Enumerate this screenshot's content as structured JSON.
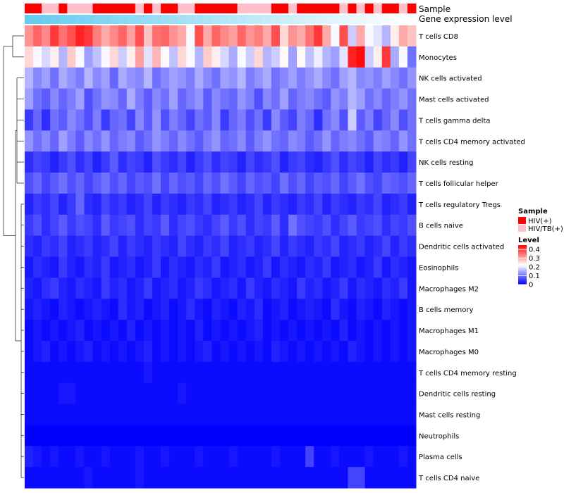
{
  "chart_data": {
    "type": "heatmap",
    "title": "",
    "annotations": {
      "sample_label": "Sample",
      "expression_label": "Gene expression level"
    },
    "rows": [
      "T cells CD8",
      "Monocytes",
      "NK cells activated",
      "Mast cells activated",
      "T cells gamma delta",
      "T cells CD4 memory activated",
      "NK cells resting",
      "T cells follicular helper",
      "T cells regulatory  Tregs",
      "B cells naive",
      "Dendritic cells activated",
      "Eosinophils",
      "Macrophages M2",
      "B cells memory",
      "Macrophages M1",
      "Macrophages M0",
      "T cells CD4 memory resting",
      "Dendritic cells resting",
      "Mast cells resting",
      "Neutrophils",
      "Plasma cells",
      "T cells CD4 naive"
    ],
    "n_samples": 46,
    "sample_groups": [
      "HIV(+)",
      "HIV(+)",
      "HIV/TB(+)",
      "HIV/TB(+)",
      "HIV(+)",
      "HIV/TB(+)",
      "HIV/TB(+)",
      "HIV/TB(+)",
      "HIV(+)",
      "HIV(+)",
      "HIV(+)",
      "HIV(+)",
      "HIV(+)",
      "HIV/TB(+)",
      "HIV(+)",
      "HIV/TB(+)",
      "HIV(+)",
      "HIV(+)",
      "HIV/TB(+)",
      "HIV/TB(+)",
      "HIV(+)",
      "HIV(+)",
      "HIV(+)",
      "HIV(+)",
      "HIV(+)",
      "HIV/TB(+)",
      "HIV/TB(+)",
      "HIV/TB(+)",
      "HIV/TB(+)",
      "HIV(+)",
      "HIV(+)",
      "HIV/TB(+)",
      "HIV(+)",
      "HIV(+)",
      "HIV(+)",
      "HIV(+)",
      "HIV(+)",
      "HIV/TB(+)",
      "HIV(+)",
      "HIV/TB(+)",
      "HIV(+)",
      "HIV/TB(+)",
      "HIV(+)",
      "HIV(+)",
      "HIV/TB(+)",
      "HIV(+)"
    ],
    "values": [
      [
        0.32,
        0.36,
        0.33,
        0.4,
        0.35,
        0.38,
        0.42,
        0.4,
        0.34,
        0.3,
        0.33,
        0.36,
        0.31,
        0.38,
        0.28,
        0.35,
        0.36,
        0.32,
        0.3,
        0.22,
        0.38,
        0.3,
        0.36,
        0.33,
        0.31,
        0.36,
        0.32,
        0.34,
        0.3,
        0.38,
        0.26,
        0.32,
        0.3,
        0.35,
        0.4,
        0.3,
        0.22,
        0.38,
        0.18,
        0.3,
        0.22,
        0.2,
        0.16,
        0.24,
        0.3,
        0.28
      ],
      [
        0.26,
        0.22,
        0.19,
        0.24,
        0.16,
        0.27,
        0.22,
        0.14,
        0.17,
        0.22,
        0.26,
        0.18,
        0.24,
        0.31,
        0.2,
        0.29,
        0.23,
        0.17,
        0.26,
        0.22,
        0.16,
        0.27,
        0.24,
        0.19,
        0.15,
        0.22,
        0.18,
        0.26,
        0.16,
        0.18,
        0.23,
        0.14,
        0.23,
        0.17,
        0.21,
        0.16,
        0.14,
        0.2,
        0.42,
        0.44,
        0.18,
        0.24,
        0.4,
        0.15,
        0.22,
        0.1
      ],
      [
        0.16,
        0.12,
        0.14,
        0.1,
        0.15,
        0.13,
        0.11,
        0.16,
        0.12,
        0.14,
        0.09,
        0.15,
        0.13,
        0.12,
        0.16,
        0.1,
        0.12,
        0.14,
        0.13,
        0.11,
        0.15,
        0.12,
        0.1,
        0.14,
        0.13,
        0.16,
        0.11,
        0.13,
        0.15,
        0.1,
        0.12,
        0.14,
        0.11,
        0.13,
        0.15,
        0.12,
        0.1,
        0.14,
        0.16,
        0.12,
        0.13,
        0.11,
        0.14,
        0.12,
        0.1,
        0.13
      ],
      [
        0.14,
        0.1,
        0.08,
        0.12,
        0.09,
        0.11,
        0.14,
        0.07,
        0.1,
        0.13,
        0.12,
        0.09,
        0.15,
        0.11,
        0.08,
        0.12,
        0.1,
        0.14,
        0.09,
        0.11,
        0.13,
        0.08,
        0.12,
        0.1,
        0.09,
        0.13,
        0.11,
        0.07,
        0.12,
        0.1,
        0.14,
        0.09,
        0.11,
        0.12,
        0.1,
        0.08,
        0.13,
        0.11,
        0.16,
        0.14,
        0.1,
        0.12,
        0.09,
        0.11,
        0.13,
        0.1
      ],
      [
        0.05,
        0.09,
        0.04,
        0.1,
        0.08,
        0.12,
        0.1,
        0.07,
        0.11,
        0.05,
        0.09,
        0.1,
        0.06,
        0.12,
        0.08,
        0.13,
        0.07,
        0.11,
        0.09,
        0.06,
        0.1,
        0.08,
        0.12,
        0.05,
        0.09,
        0.11,
        0.07,
        0.1,
        0.05,
        0.12,
        0.08,
        0.06,
        0.11,
        0.09,
        0.04,
        0.1,
        0.12,
        0.07,
        0.18,
        0.08,
        0.11,
        0.06,
        0.09,
        0.12,
        0.07,
        0.1
      ],
      [
        0.13,
        0.1,
        0.12,
        0.09,
        0.14,
        0.11,
        0.08,
        0.12,
        0.1,
        0.13,
        0.09,
        0.11,
        0.12,
        0.08,
        0.1,
        0.13,
        0.11,
        0.09,
        0.12,
        0.1,
        0.08,
        0.11,
        0.13,
        0.09,
        0.1,
        0.12,
        0.08,
        0.11,
        0.13,
        0.1,
        0.09,
        0.12,
        0.11,
        0.08,
        0.1,
        0.13,
        0.09,
        0.11,
        0.12,
        0.1,
        0.08,
        0.12,
        0.11,
        0.09,
        0.13,
        0.1
      ],
      [
        0.04,
        0.06,
        0.05,
        0.03,
        0.05,
        0.07,
        0.04,
        0.06,
        0.03,
        0.05,
        0.08,
        0.04,
        0.06,
        0.05,
        0.03,
        0.07,
        0.05,
        0.04,
        0.06,
        0.03,
        0.05,
        0.07,
        0.04,
        0.06,
        0.05,
        0.03,
        0.06,
        0.04,
        0.05,
        0.07,
        0.03,
        0.05,
        0.06,
        0.04,
        0.03,
        0.05,
        0.07,
        0.04,
        0.06,
        0.05,
        0.03,
        0.06,
        0.04,
        0.05,
        0.03,
        0.06
      ],
      [
        0.07,
        0.09,
        0.06,
        0.08,
        0.1,
        0.07,
        0.09,
        0.06,
        0.08,
        0.1,
        0.07,
        0.09,
        0.06,
        0.08,
        0.07,
        0.1,
        0.06,
        0.09,
        0.07,
        0.08,
        0.06,
        0.09,
        0.07,
        0.1,
        0.08,
        0.06,
        0.09,
        0.07,
        0.08,
        0.06,
        0.1,
        0.07,
        0.09,
        0.06,
        0.08,
        0.07,
        0.09,
        0.06,
        0.08,
        0.1,
        0.07,
        0.06,
        0.09,
        0.08,
        0.07,
        0.09
      ],
      [
        0.03,
        0.05,
        0.04,
        0.06,
        0.03,
        0.05,
        0.09,
        0.04,
        0.03,
        0.06,
        0.04,
        0.05,
        0.03,
        0.04,
        0.06,
        0.03,
        0.05,
        0.04,
        0.03,
        0.05,
        0.04,
        0.06,
        0.03,
        0.04,
        0.05,
        0.03,
        0.04,
        0.06,
        0.03,
        0.05,
        0.04,
        0.03,
        0.05,
        0.04,
        0.06,
        0.03,
        0.05,
        0.04,
        0.03,
        0.05,
        0.04,
        0.06,
        0.03,
        0.04,
        0.05,
        0.03
      ],
      [
        0.05,
        0.07,
        0.04,
        0.06,
        0.08,
        0.05,
        0.07,
        0.06,
        0.04,
        0.08,
        0.05,
        0.06,
        0.07,
        0.04,
        0.06,
        0.05,
        0.08,
        0.04,
        0.06,
        0.07,
        0.05,
        0.04,
        0.06,
        0.08,
        0.05,
        0.07,
        0.04,
        0.06,
        0.05,
        0.08,
        0.04,
        0.1,
        0.07,
        0.06,
        0.05,
        0.07,
        0.04,
        0.06,
        0.08,
        0.05,
        0.06,
        0.07,
        0.04,
        0.06,
        0.05,
        0.07
      ],
      [
        0.04,
        0.03,
        0.05,
        0.04,
        0.06,
        0.03,
        0.04,
        0.05,
        0.03,
        0.04,
        0.06,
        0.03,
        0.05,
        0.04,
        0.03,
        0.05,
        0.04,
        0.03,
        0.06,
        0.04,
        0.03,
        0.05,
        0.04,
        0.06,
        0.03,
        0.04,
        0.05,
        0.03,
        0.04,
        0.06,
        0.03,
        0.05,
        0.04,
        0.03,
        0.05,
        0.04,
        0.06,
        0.03,
        0.04,
        0.05,
        0.03,
        0.04,
        0.06,
        0.03,
        0.05,
        0.04
      ],
      [
        0.02,
        0.04,
        0.03,
        0.02,
        0.05,
        0.03,
        0.02,
        0.04,
        0.03,
        0.05,
        0.02,
        0.03,
        0.04,
        0.02,
        0.03,
        0.05,
        0.02,
        0.04,
        0.03,
        0.02,
        0.04,
        0.03,
        0.05,
        0.02,
        0.03,
        0.04,
        0.02,
        0.03,
        0.05,
        0.02,
        0.04,
        0.03,
        0.02,
        0.04,
        0.03,
        0.05,
        0.02,
        0.03,
        0.04,
        0.02,
        0.03,
        0.05,
        0.02,
        0.04,
        0.03,
        0.02
      ],
      [
        0.03,
        0.02,
        0.04,
        0.05,
        0.03,
        0.02,
        0.04,
        0.03,
        0.02,
        0.05,
        0.03,
        0.04,
        0.02,
        0.03,
        0.05,
        0.02,
        0.03,
        0.04,
        0.02,
        0.03,
        0.05,
        0.04,
        0.02,
        0.03,
        0.04,
        0.02,
        0.05,
        0.03,
        0.02,
        0.04,
        0.03,
        0.02,
        0.05,
        0.03,
        0.04,
        0.02,
        0.03,
        0.05,
        0.02,
        0.04,
        0.03,
        0.02,
        0.04,
        0.03,
        0.05,
        0.02
      ],
      [
        0.02,
        0.03,
        0.02,
        0.01,
        0.03,
        0.02,
        0.01,
        0.02,
        0.03,
        0.02,
        0.01,
        0.04,
        0.02,
        0.03,
        0.01,
        0.02,
        0.03,
        0.01,
        0.02,
        0.04,
        0.02,
        0.01,
        0.03,
        0.02,
        0.01,
        0.03,
        0.02,
        0.04,
        0.01,
        0.02,
        0.03,
        0.01,
        0.02,
        0.03,
        0.02,
        0.01,
        0.04,
        0.02,
        0.01,
        0.03,
        0.02,
        0.01,
        0.03,
        0.02,
        0.01,
        0.02
      ],
      [
        0.01,
        0.02,
        0.01,
        0.02,
        0.01,
        0.02,
        0.03,
        0.01,
        0.02,
        0.01,
        0.02,
        0.01,
        0.03,
        0.01,
        0.02,
        0.01,
        0.02,
        0.01,
        0.02,
        0.01,
        0.03,
        0.01,
        0.02,
        0.01,
        0.02,
        0.01,
        0.02,
        0.03,
        0.01,
        0.02,
        0.01,
        0.02,
        0.01,
        0.02,
        0.01,
        0.02,
        0.01,
        0.03,
        0.01,
        0.02,
        0.01,
        0.02,
        0.01,
        0.02,
        0.01,
        0.02
      ],
      [
        0.01,
        0.02,
        0.03,
        0.01,
        0.02,
        0.01,
        0.02,
        0.03,
        0.01,
        0.02,
        0.01,
        0.02,
        0.01,
        0.02,
        0.03,
        0.01,
        0.02,
        0.01,
        0.02,
        0.01,
        0.02,
        0.03,
        0.01,
        0.02,
        0.01,
        0.02,
        0.01,
        0.02,
        0.01,
        0.03,
        0.02,
        0.01,
        0.02,
        0.01,
        0.02,
        0.01,
        0.02,
        0.01,
        0.03,
        0.02,
        0.01,
        0.02,
        0.01,
        0.02,
        0.01,
        0.02
      ],
      [
        0.01,
        0.01,
        0.01,
        0.01,
        0.01,
        0.01,
        0.01,
        0.01,
        0.01,
        0.01,
        0.01,
        0.01,
        0.01,
        0.01,
        0.02,
        0.01,
        0.01,
        0.01,
        0.01,
        0.01,
        0.01,
        0.01,
        0.01,
        0.01,
        0.01,
        0.01,
        0.01,
        0.01,
        0.01,
        0.01,
        0.01,
        0.01,
        0.01,
        0.01,
        0.01,
        0.01,
        0.01,
        0.01,
        0.01,
        0.01,
        0.01,
        0.01,
        0.01,
        0.01,
        0.01,
        0.01
      ],
      [
        0.01,
        0.01,
        0.01,
        0.01,
        0.02,
        0.02,
        0.01,
        0.01,
        0.01,
        0.01,
        0.01,
        0.01,
        0.01,
        0.01,
        0.01,
        0.01,
        0.01,
        0.01,
        0.02,
        0.01,
        0.01,
        0.01,
        0.01,
        0.01,
        0.01,
        0.01,
        0.01,
        0.01,
        0.01,
        0.01,
        0.01,
        0.01,
        0.01,
        0.01,
        0.01,
        0.01,
        0.01,
        0.01,
        0.01,
        0.01,
        0.01,
        0.01,
        0.01,
        0.01,
        0.01,
        0.01
      ],
      [
        0.01,
        0.01,
        0.01,
        0.01,
        0.01,
        0.01,
        0.01,
        0.01,
        0.01,
        0.01,
        0.01,
        0.01,
        0.01,
        0.01,
        0.01,
        0.01,
        0.01,
        0.01,
        0.01,
        0.01,
        0.01,
        0.01,
        0.01,
        0.01,
        0.01,
        0.01,
        0.01,
        0.01,
        0.01,
        0.01,
        0.01,
        0.01,
        0.01,
        0.01,
        0.01,
        0.01,
        0.01,
        0.01,
        0.01,
        0.01,
        0.01,
        0.01,
        0.01,
        0.01,
        0.01,
        0.01
      ],
      [
        0.0,
        0.0,
        0.0,
        0.0,
        0.0,
        0.0,
        0.0,
        0.0,
        0.0,
        0.0,
        0.0,
        0.0,
        0.0,
        0.0,
        0.0,
        0.0,
        0.0,
        0.0,
        0.0,
        0.0,
        0.0,
        0.0,
        0.0,
        0.0,
        0.0,
        0.0,
        0.0,
        0.0,
        0.0,
        0.0,
        0.0,
        0.0,
        0.0,
        0.0,
        0.0,
        0.0,
        0.0,
        0.0,
        0.0,
        0.0,
        0.0,
        0.0,
        0.0,
        0.0,
        0.0,
        0.0
      ],
      [
        0.03,
        0.02,
        0.01,
        0.02,
        0.01,
        0.01,
        0.02,
        0.01,
        0.01,
        0.02,
        0.01,
        0.01,
        0.01,
        0.02,
        0.01,
        0.01,
        0.02,
        0.01,
        0.01,
        0.01,
        0.02,
        0.01,
        0.01,
        0.01,
        0.02,
        0.01,
        0.01,
        0.01,
        0.01,
        0.02,
        0.01,
        0.01,
        0.01,
        0.06,
        0.01,
        0.01,
        0.02,
        0.01,
        0.01,
        0.01,
        0.02,
        0.01,
        0.01,
        0.01,
        0.02,
        0.01
      ],
      [
        0.01,
        0.01,
        0.01,
        0.01,
        0.01,
        0.01,
        0.01,
        0.02,
        0.01,
        0.01,
        0.01,
        0.01,
        0.01,
        0.02,
        0.01,
        0.01,
        0.01,
        0.01,
        0.01,
        0.01,
        0.01,
        0.01,
        0.01,
        0.01,
        0.01,
        0.01,
        0.01,
        0.01,
        0.01,
        0.01,
        0.01,
        0.01,
        0.01,
        0.01,
        0.01,
        0.01,
        0.01,
        0.01,
        0.06,
        0.06,
        0.01,
        0.01,
        0.01,
        0.01,
        0.01,
        0.01
      ]
    ],
    "expression_levels": [
      0.82,
      0.81,
      0.8,
      0.79,
      0.78,
      0.77,
      0.76,
      0.75,
      0.74,
      0.73,
      0.72,
      0.71,
      0.7,
      0.69,
      0.68,
      0.67,
      0.66,
      0.65,
      0.64,
      0.63,
      0.62,
      0.61,
      0.6,
      0.59,
      0.58,
      0.57,
      0.56,
      0.55,
      0.54,
      0.53,
      0.52,
      0.51,
      0.5,
      0.49,
      0.48,
      0.47,
      0.46,
      0.45,
      0.44,
      0.43,
      0.42,
      0.41,
      0.4,
      0.39,
      0.38,
      0.37
    ],
    "legend": {
      "sample": {
        "title": "Sample",
        "items": [
          {
            "label": "HIV(+)",
            "color": "#ff0000"
          },
          {
            "label": "HIV/TB(+)",
            "color": "#ffc0cb"
          }
        ]
      },
      "level": {
        "title": "Level",
        "ticks": [
          "0.4",
          "0.3",
          "0.2",
          "0.1",
          "0"
        ],
        "tick_values": [
          0.4,
          0.3,
          0.2,
          0.1,
          0
        ],
        "colors": [
          "#0000ff",
          "#ffffff",
          "#ff0000"
        ],
        "range": [
          0,
          0.45
        ]
      }
    },
    "expression_colors": [
      "#ffffff",
      "#64ccf0"
    ]
  }
}
